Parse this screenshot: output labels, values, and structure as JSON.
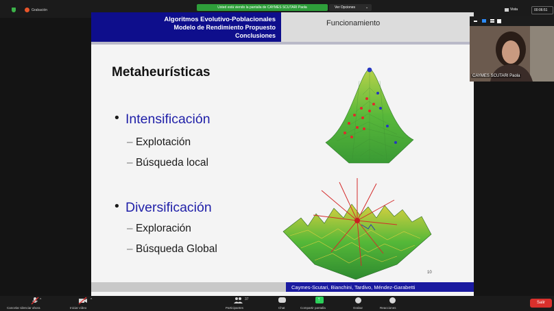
{
  "topbar": {
    "recording_label": "Grabación",
    "share_banner": "Usted está viendo la pantalla de CAYMES SCUTARI Paola",
    "view_options": "Ver Opciones",
    "view_label": "Vista",
    "timer": "00:06:51",
    "colors": {
      "banner": "#2e9e3a",
      "record": "#e8552a",
      "shield": "#3cb34a"
    }
  },
  "slide": {
    "header_left": [
      "Algoritmos Evolutivo-Poblacionales",
      "Modelo de Rendimiento Propuesto",
      "Conclusiones"
    ],
    "header_right": "Funcionamiento",
    "title": "Metaheurísticas",
    "bullets": [
      {
        "label": "Intensificación",
        "subs": [
          "Explotación",
          "Búsqueda local"
        ]
      },
      {
        "label": "Diversificación",
        "subs": [
          "Exploración",
          "Búsqueda Global"
        ]
      }
    ],
    "page_number": "10",
    "footer": "Caymes-Scutari, Bianchini, Tardivo, Méndez-Garabetti",
    "colors": {
      "header": "#0e0e8c",
      "accent": "#1f1fa8",
      "footer": "#1a1aa0"
    }
  },
  "participant": {
    "name": "CAYMES SCUTARI Paola"
  },
  "toolbar": {
    "mute_label": "Cancelar silenciar ahora",
    "video_label": "Iniciar vídeo",
    "participants_label": "Participantes",
    "participants_count": "37",
    "chat_label": "Chat",
    "share_label": "Compartir pantalla",
    "record_label": "Grabar",
    "reactions_label": "Reacciones",
    "leave_label": "Salir",
    "colors": {
      "share": "#2bd05a",
      "leave": "#d9302c"
    }
  }
}
